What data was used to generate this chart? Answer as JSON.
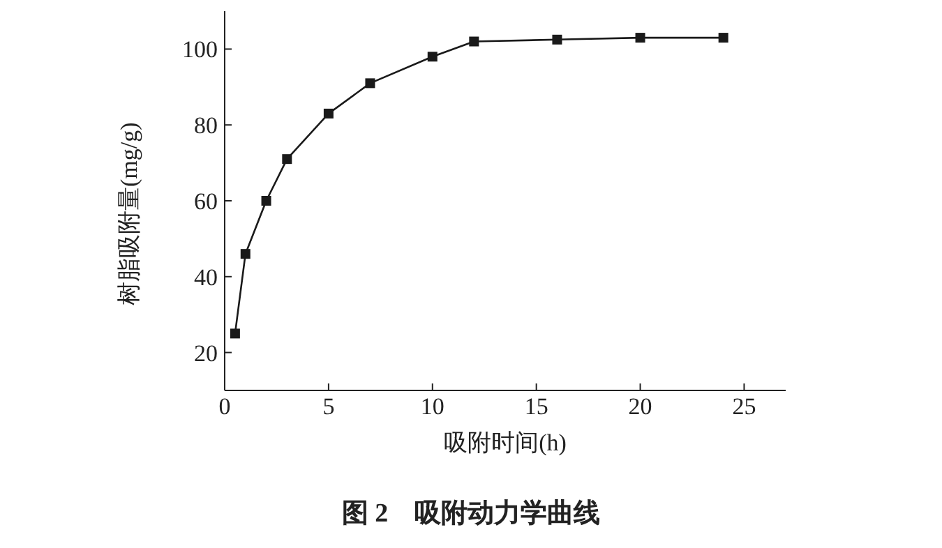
{
  "chart_data": {
    "type": "line",
    "xlabel": "吸附时间(h)",
    "ylabel": "树脂吸附量(mg/g)",
    "annotations": [
      "图 2　吸附动力学曲线"
    ],
    "x": [
      0.5,
      1,
      2,
      3,
      5,
      7,
      10,
      12,
      16,
      20,
      24
    ],
    "series": [
      {
        "color": "#1a1a1a",
        "values": [
          25,
          46,
          60,
          71,
          83,
          91,
          98,
          102,
          102.5,
          103,
          103
        ]
      }
    ],
    "xlim": [
      0,
      27
    ],
    "xticks": [
      0,
      5,
      10,
      15,
      20,
      25
    ],
    "ylim": [
      10,
      110
    ],
    "yticks": [
      20,
      40,
      60,
      80,
      100
    ],
    "grid": false,
    "legend": false,
    "marker": "square",
    "line_style": "solid"
  }
}
